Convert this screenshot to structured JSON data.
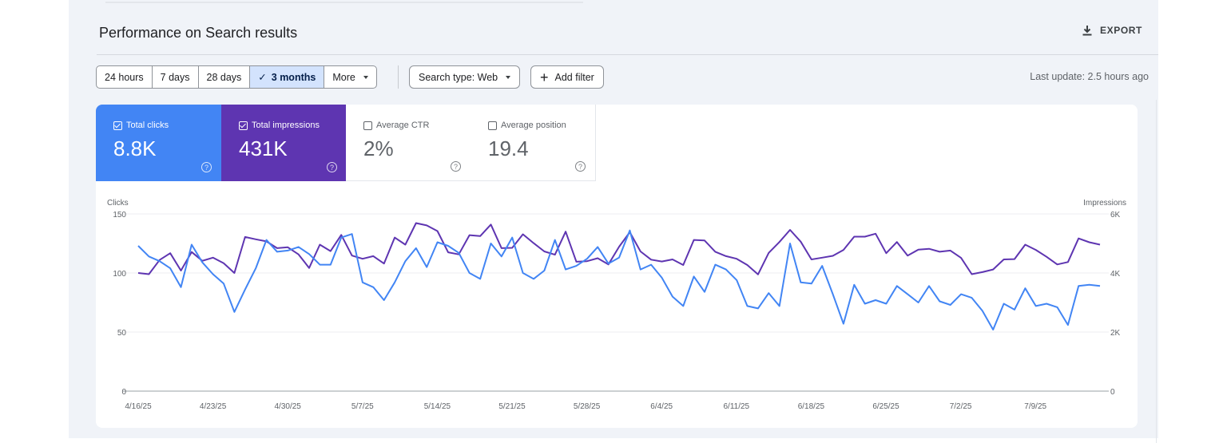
{
  "header": {
    "title": "Performance on Search results",
    "export_label": "EXPORT"
  },
  "toolbar": {
    "ranges": [
      {
        "label": "24 hours",
        "active": false
      },
      {
        "label": "7 days",
        "active": false
      },
      {
        "label": "28 days",
        "active": false
      },
      {
        "label": "3 months",
        "active": true
      },
      {
        "label": "More",
        "active": false
      }
    ],
    "search_type_label": "Search type: Web",
    "add_filter_label": "Add filter",
    "last_update": "Last update: 2.5 hours ago"
  },
  "metrics": [
    {
      "label": "Total clicks",
      "value": "8.8K",
      "checked": true,
      "color": "#4285f4"
    },
    {
      "label": "Total impressions",
      "value": "431K",
      "checked": true,
      "color": "#5e35b1"
    },
    {
      "label": "Average CTR",
      "value": "2%",
      "checked": false
    },
    {
      "label": "Average position",
      "value": "19.4",
      "checked": false
    }
  ],
  "chart_data": {
    "type": "line",
    "left_axis": {
      "label": "Clicks",
      "min": 0,
      "max": 150,
      "ticks": [
        "0",
        "50",
        "100",
        "150"
      ]
    },
    "right_axis": {
      "label": "Impressions",
      "min": 0,
      "max": 6000,
      "ticks": [
        "0",
        "2K",
        "4K",
        "6K"
      ]
    },
    "x_tick_labels": [
      "4/16/25",
      "4/23/25",
      "4/30/25",
      "5/7/25",
      "5/14/25",
      "5/21/25",
      "5/28/25",
      "6/4/25",
      "6/11/25",
      "6/18/25",
      "6/25/25",
      "7/2/25",
      "7/9/25"
    ],
    "grid": true,
    "series": [
      {
        "name": "Clicks",
        "axis": "left",
        "color": "#4285f4",
        "values": [
          123,
          114,
          110,
          104,
          88,
          124,
          109,
          99,
          91,
          67,
          86,
          104,
          128,
          118,
          119,
          122,
          116,
          107,
          107,
          130,
          133,
          92,
          88,
          77,
          92,
          110,
          121,
          105,
          126,
          123,
          117,
          100,
          95,
          125,
          114,
          130,
          100,
          95,
          102,
          128,
          103,
          106,
          112,
          122,
          108,
          113,
          136,
          103,
          107,
          96,
          80,
          72,
          97,
          84,
          107,
          103,
          94,
          72,
          70,
          83,
          72,
          125,
          92,
          91,
          106,
          82,
          57,
          90,
          74,
          77,
          74,
          89,
          82,
          75,
          89,
          76,
          73,
          82,
          79,
          68,
          52,
          74,
          69,
          87,
          72,
          74,
          71,
          56,
          89,
          90,
          89
        ]
      },
      {
        "name": "Impressions",
        "axis": "right",
        "color": "#5e35b1",
        "values": [
          4000,
          3960,
          4440,
          4670,
          4080,
          4710,
          4410,
          4520,
          4330,
          4000,
          5220,
          5140,
          5070,
          4840,
          4870,
          4630,
          4170,
          4960,
          4740,
          5290,
          4590,
          4480,
          4570,
          4320,
          5200,
          4960,
          5690,
          5610,
          5420,
          4700,
          4630,
          5280,
          5250,
          5640,
          4840,
          4850,
          5310,
          5010,
          4730,
          4620,
          5400,
          4380,
          4400,
          4500,
          4290,
          4890,
          5380,
          4730,
          4450,
          4390,
          4460,
          4270,
          5120,
          5100,
          4720,
          4570,
          4480,
          4270,
          3950,
          4680,
          5050,
          5460,
          5060,
          4460,
          4520,
          4580,
          4780,
          5230,
          5230,
          5330,
          4670,
          5050,
          4590,
          4790,
          4820,
          4720,
          4760,
          4510,
          3960,
          4030,
          4120,
          4460,
          4470,
          4960,
          4780,
          4550,
          4290,
          4370,
          5170,
          5040,
          4960
        ]
      }
    ]
  }
}
